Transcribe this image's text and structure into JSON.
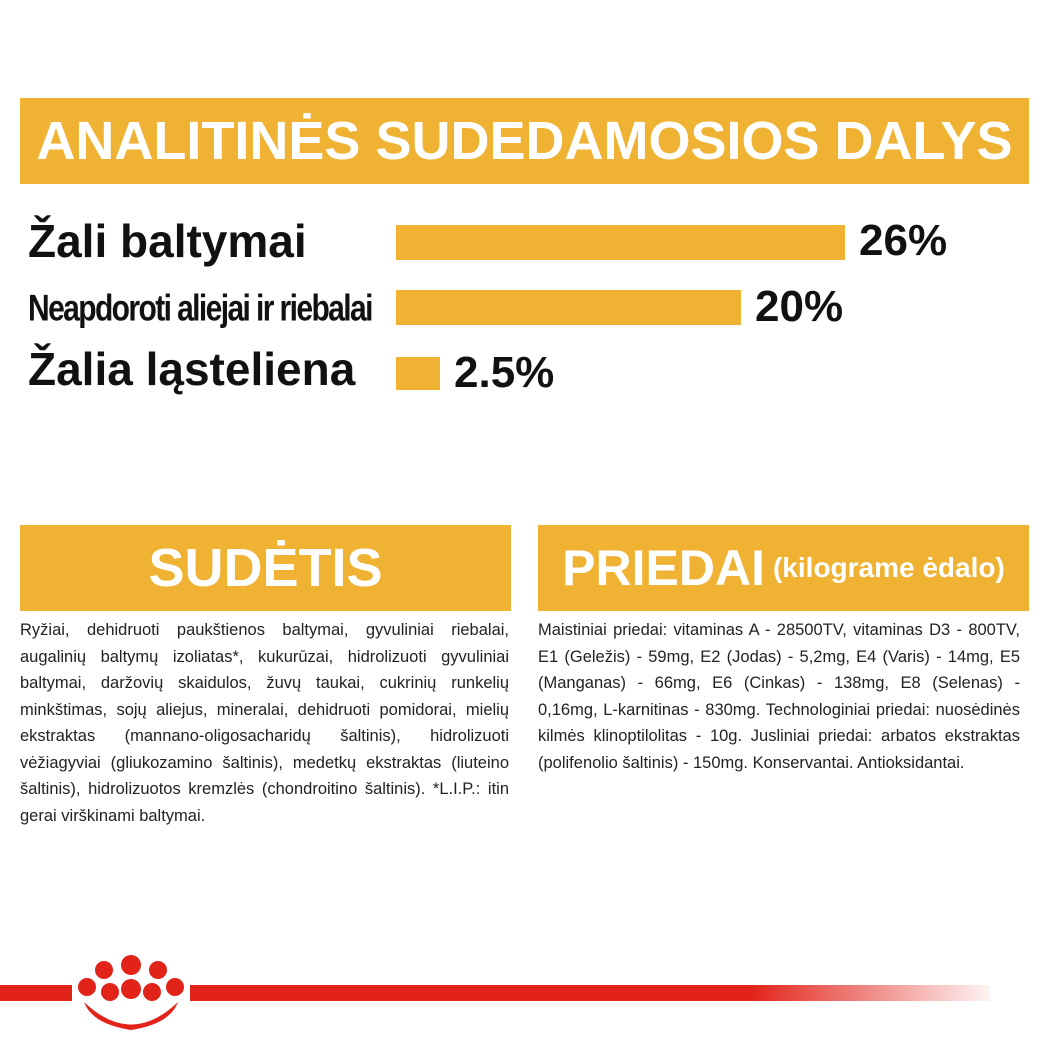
{
  "header": {
    "title": "ANALITINĖS SUDEDAMOSIOS DALYS"
  },
  "nutrients": [
    {
      "label": "Žali baltymai",
      "value": "26%",
      "percent": 26
    },
    {
      "label": "Neapdoroti aliejai ir riebalai",
      "value": "20%",
      "percent": 20
    },
    {
      "label": "Žalia ląsteliena",
      "value": "2.5%",
      "percent": 2.5
    }
  ],
  "sudetis": {
    "title": "SUDĖTIS",
    "text": "Ryžiai, dehidruoti paukštienos baltymai, gyvuliniai riebalai, augalinių baltymų izoliatas*, kukurūzai, hidrolizuoti gyvuliniai baltymai, daržovių skaidulos, žuvų taukai, cukrinių runkelių minkštimas, sojų aliejus, mineralai, dehidruoti pomidorai, mielių ekstraktas (mannano-oligosacharidų šaltinis), hidrolizuoti vėžiagyviai (gliukozamino šaltinis), medetkų ekstraktas (liuteino šaltinis), hidrolizuotos kremzlės (chondroitino šaltinis). *L.I.P.: itin gerai virškinami baltymai."
  },
  "priedai": {
    "title": "PRIEDAI",
    "subtitle": "(kilograme ėdalo)",
    "text": "Maistiniai priedai: vitaminas A - 28500TV, vitaminas D3 - 800TV, E1 (Geležis) - 59mg, E2 (Jodas) - 5,2mg, E4 (Varis) - 14mg, E5 (Manganas) - 66mg, E6 (Cinkas) - 138mg, E8 (Selenas) - 0,16mg, L-karnitinas - 830mg. Technologiniai priedai: nuosėdinės kilmės klinoptilolitas - 10g. Jusliniai priedai: arbatos ekstraktas (polifenolio šaltinis) - 150mg. Konservantai. Antioksidantai."
  },
  "colors": {
    "accent": "#f0b233",
    "brand_red": "#e2231a",
    "text": "#111111"
  }
}
